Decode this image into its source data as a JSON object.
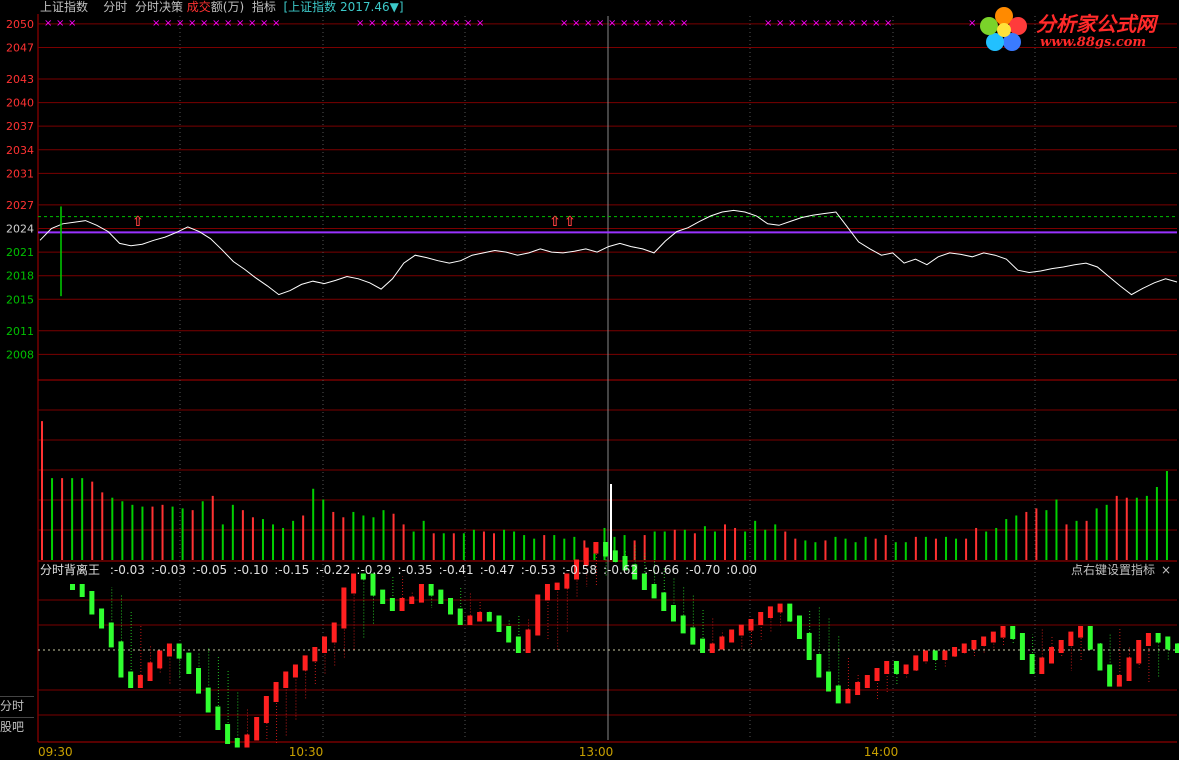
{
  "header": {
    "instrument": "上证指数",
    "tab_fenshi": "分时",
    "tab_juece": "分时决策",
    "vol_prefix": "成交",
    "vol_suffix": "额(万)",
    "zhibiao": "指标",
    "bracket_name": "[上证指数",
    "price": "2017.46",
    "arrow": "▼]"
  },
  "logo": {
    "title": "分析家公式网",
    "url": "www.88gs.com",
    "icon": "flower-logo-icon"
  },
  "indicator": {
    "name": "分时背离王",
    "values": [
      ":-0.03",
      ":-0.03",
      ":-0.05",
      ":-0.10",
      ":-0.15",
      ":-0.22",
      ":-0.29",
      ":-0.35",
      ":-0.41",
      ":-0.47",
      ":-0.53",
      ":-0.58",
      ":-0.62",
      ":-0.66",
      ":-0.70",
      ":0.00"
    ],
    "hint": "点右键设置指标",
    "close": "×"
  },
  "side_buttons": {
    "fenshi": "分时",
    "guba": "股吧"
  },
  "colors": {
    "up": "#ff3232",
    "down": "#00d000",
    "price_line": "#ffffff",
    "avg_line": "#9932ff",
    "grid": "#7a0000",
    "tick_red": "#ff3232",
    "tick_green": "#00c000",
    "header_cyan": "#3cc8c8",
    "ind_up": "#ff2020",
    "ind_down": "#30ff30",
    "marker": "#ff00ff"
  },
  "chart_data": {
    "type": "line",
    "price_axis_ticks_red": [
      "2050",
      "2047",
      "2043",
      "2040",
      "2037",
      "2034",
      "2031",
      "2027"
    ],
    "price_axis_ticks_neutral": [
      "2024"
    ],
    "price_axis_ticks_green": [
      "2021",
      "2018",
      "2015",
      "2011",
      "2008"
    ],
    "ylim": [
      2005,
      2051
    ],
    "prev_close": 2023.5,
    "time_labels": [
      "09:30",
      "10:30",
      "13:00",
      "14:00"
    ],
    "avg_price": 2023.5,
    "upper_dash": 2025.5,
    "price_series": [
      2022.5,
      2024.0,
      2024.6,
      2024.8,
      2025.0,
      2024.4,
      2023.6,
      2022.1,
      2021.8,
      2022.0,
      2022.5,
      2022.9,
      2023.5,
      2024.2,
      2023.6,
      2022.7,
      2021.3,
      2019.8,
      2018.8,
      2017.7,
      2016.7,
      2015.6,
      2016.1,
      2016.9,
      2017.3,
      2017.0,
      2017.4,
      2017.9,
      2017.6,
      2017.1,
      2016.3,
      2017.6,
      2019.6,
      2020.6,
      2020.3,
      2019.9,
      2019.6,
      2019.9,
      2020.6,
      2020.9,
      2021.2,
      2021.0,
      2020.6,
      2020.9,
      2021.4,
      2021.0,
      2020.9,
      2021.1,
      2021.4,
      2021.0,
      2021.7,
      2022.1,
      2021.7,
      2021.4,
      2020.9,
      2022.4,
      2023.6,
      2024.1,
      2024.9,
      2025.6,
      2026.1,
      2026.3,
      2026.1,
      2025.6,
      2024.6,
      2024.4,
      2024.9,
      2025.4,
      2025.7,
      2025.9,
      2026.1,
      2024.2,
      2022.3,
      2021.4,
      2020.6,
      2020.9,
      2019.6,
      2020.1,
      2019.4,
      2020.4,
      2020.9,
      2020.7,
      2020.4,
      2020.9,
      2020.6,
      2020.1,
      2018.7,
      2018.4,
      2018.6,
      2018.9,
      2019.1,
      2019.4,
      2019.6,
      2019.1,
      2017.9,
      2016.7,
      2015.6,
      2016.4,
      2017.1,
      2017.6,
      2017.2
    ],
    "volume_series": [
      78,
      46,
      46,
      46,
      46,
      44,
      38,
      35,
      33,
      31,
      30,
      30,
      31,
      30,
      29,
      28,
      33,
      36,
      20,
      31,
      28,
      24,
      23,
      20,
      18,
      22,
      25,
      40,
      34,
      27,
      24,
      27,
      25,
      24,
      28,
      26,
      20,
      16,
      22,
      15,
      15,
      15,
      15,
      17,
      16,
      15,
      17,
      16,
      14,
      12,
      14,
      14,
      12,
      13,
      11,
      10,
      18,
      13,
      14,
      11,
      14,
      16,
      16,
      17,
      17,
      15,
      19,
      16,
      20,
      18,
      16,
      22,
      17,
      20,
      16,
      12,
      11,
      10,
      11,
      13,
      12,
      10,
      13,
      12,
      14,
      10,
      10,
      13,
      13,
      12,
      13,
      12,
      12,
      18,
      16,
      18,
      23,
      25,
      27,
      29,
      28,
      34,
      20,
      22,
      22,
      29,
      31,
      36,
      35,
      35,
      36,
      41,
      50
    ],
    "indicator_series": [
      0.9,
      0.8,
      0.55,
      0.35,
      0.08,
      -0.35,
      -0.5,
      -0.4,
      -0.22,
      -0.05,
      0.05,
      -0.08,
      -0.3,
      -0.58,
      -0.85,
      -1.1,
      -1.3,
      -1.35,
      -1.25,
      -1.0,
      -0.7,
      -0.5,
      -0.35,
      -0.25,
      -0.12,
      0.0,
      0.15,
      0.35,
      0.85,
      1.05,
      1.05,
      0.82,
      0.7,
      0.6,
      0.7,
      0.72,
      0.9,
      0.82,
      0.7,
      0.55,
      0.4,
      0.45,
      0.5,
      0.45,
      0.3,
      0.15,
      0.0,
      0.25,
      0.75,
      0.9,
      0.92,
      1.05,
      1.25,
      1.42,
      1.5,
      1.38,
      1.3,
      1.18,
      1.05,
      0.9,
      0.78,
      0.6,
      0.45,
      0.28,
      0.12,
      0.0,
      0.05,
      0.15,
      0.25,
      0.32,
      0.4,
      0.5,
      0.58,
      0.62,
      0.45,
      0.2,
      -0.1,
      -0.35,
      -0.55,
      -0.72,
      -0.6,
      -0.5,
      -0.4,
      -0.3,
      -0.2,
      -0.3,
      -0.25,
      -0.12,
      -0.05,
      -0.1,
      -0.05,
      0.0,
      0.05,
      0.1,
      0.15,
      0.22,
      0.3,
      0.2,
      -0.1,
      -0.3,
      -0.15,
      0.0,
      0.1,
      0.22,
      0.3,
      0.05,
      -0.25,
      -0.48,
      -0.4,
      -0.15,
      0.1,
      0.2,
      0.15,
      0.05,
      0.0
    ],
    "divergence_markers": [
      138,
      555,
      570
    ]
  }
}
